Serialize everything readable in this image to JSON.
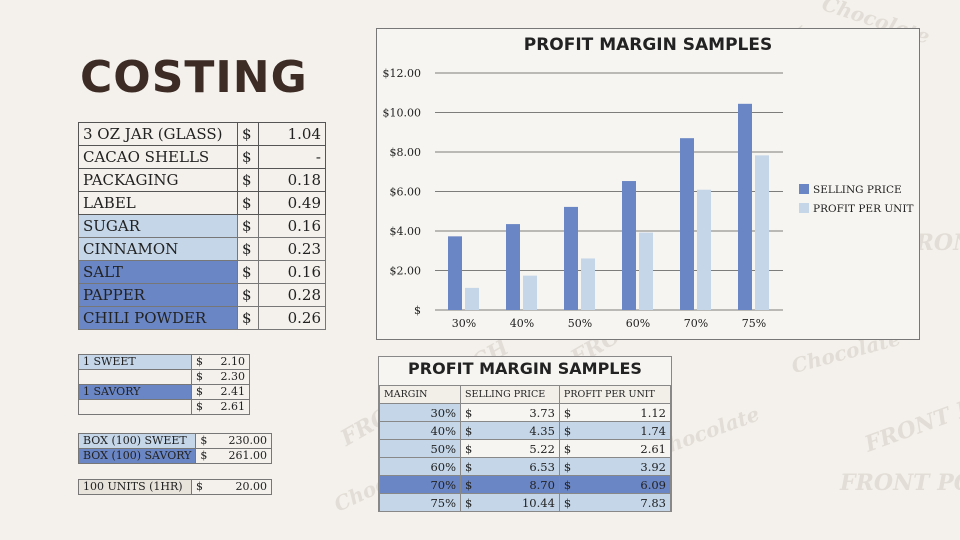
{
  "title": "COSTING",
  "watermark": {
    "line1": "FRONT PORCH",
    "line2": "Chocolate"
  },
  "cost_items": [
    {
      "label": "3 OZ JAR (GLASS)",
      "currency": "$",
      "value": "1.04",
      "group": "none"
    },
    {
      "label": "CACAO SHELLS",
      "currency": "$",
      "value": "-",
      "group": "none"
    },
    {
      "label": "PACKAGING",
      "currency": "$",
      "value": "0.18",
      "group": "none"
    },
    {
      "label": "LABEL",
      "currency": "$",
      "value": "0.49",
      "group": "none"
    },
    {
      "label": "SUGAR",
      "currency": "$",
      "value": "0.16",
      "group": "light"
    },
    {
      "label": "CINNAMON",
      "currency": "$",
      "value": "0.23",
      "group": "light"
    },
    {
      "label": "SALT",
      "currency": "$",
      "value": "0.16",
      "group": "dark"
    },
    {
      "label": "PAPPER",
      "currency": "$",
      "value": "0.28",
      "group": "dark"
    },
    {
      "label": "CHILI POWDER",
      "currency": "$",
      "value": "0.26",
      "group": "dark"
    }
  ],
  "unit_costs": [
    {
      "label": "1 SWEET",
      "currency": "$",
      "value": "2.10"
    },
    {
      "label": "",
      "currency": "$",
      "value": "2.30"
    },
    {
      "label": "1 SAVORY",
      "currency": "$",
      "value": "2.41"
    },
    {
      "label": "",
      "currency": "$",
      "value": "2.61"
    }
  ],
  "box_costs": [
    {
      "label": "BOX (100) SWEET",
      "currency": "$",
      "value": "230.00"
    },
    {
      "label": "BOX (100) SAVORY",
      "currency": "$",
      "value": "261.00"
    }
  ],
  "labor": {
    "label": "100 UNITS (1HR)",
    "currency": "$",
    "value": "20.00"
  },
  "colors": {
    "dark_blue": "#6b86c4",
    "light_blue": "#c4d6e8",
    "title_brown": "#3d2b25"
  },
  "chart_data": {
    "type": "bar",
    "title": "PROFIT MARGIN SAMPLES",
    "categories": [
      "30%",
      "40%",
      "50%",
      "60%",
      "70%",
      "75%"
    ],
    "series": [
      {
        "name": "SELLING PRICE",
        "values": [
          3.73,
          4.35,
          5.22,
          6.53,
          8.7,
          10.44
        ],
        "color": "#6b86c4"
      },
      {
        "name": "PROFIT PER UNIT",
        "values": [
          1.12,
          1.74,
          2.61,
          3.92,
          6.09,
          7.83
        ],
        "color": "#c4d6e8"
      }
    ],
    "y_ticks": [
      "$",
      "$2.00",
      "$4.00",
      "$6.00",
      "$8.00",
      "$10.00",
      "$12.00"
    ],
    "ylim": [
      0,
      12
    ],
    "grid": true,
    "legend": "right",
    "xlabel": "",
    "ylabel": ""
  },
  "margin_table": {
    "title": "PROFIT MARGIN SAMPLES",
    "headers": [
      "MARGIN",
      "SELLING PRICE",
      "PROFIT PER UNIT"
    ],
    "rows": [
      {
        "margin": "30%",
        "price": "3.73",
        "profit": "1.12"
      },
      {
        "margin": "40%",
        "price": "4.35",
        "profit": "1.74"
      },
      {
        "margin": "50%",
        "price": "5.22",
        "profit": "2.61"
      },
      {
        "margin": "60%",
        "price": "6.53",
        "profit": "3.92"
      },
      {
        "margin": "70%",
        "price": "8.70",
        "profit": "6.09"
      },
      {
        "margin": "75%",
        "price": "10.44",
        "profit": "7.83"
      }
    ],
    "currency": "$"
  }
}
